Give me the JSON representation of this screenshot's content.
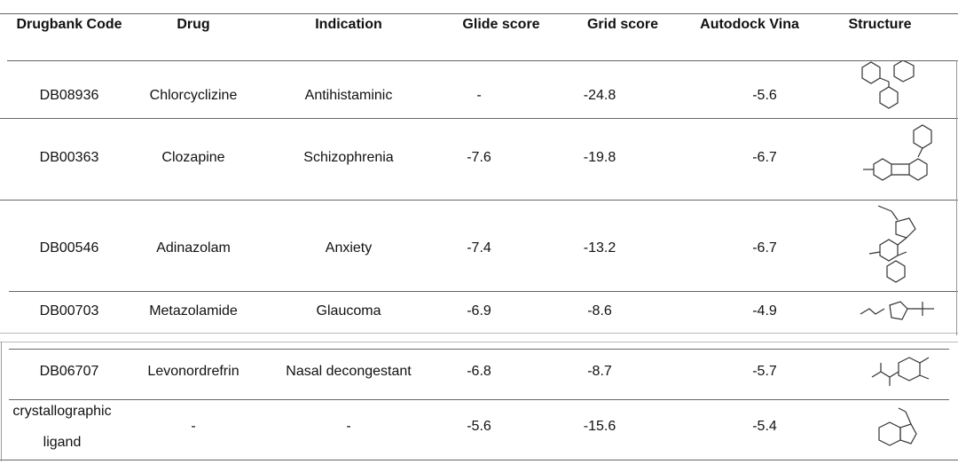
{
  "table": {
    "header": [
      "Drugbank Code",
      "Drug",
      "Indication",
      "Glide score",
      "Grid score",
      "Autodock Vina",
      "Structure"
    ],
    "rows": [
      [
        "DB08936",
        "Chlorcyclizine",
        "Antihistaminic",
        "-",
        "-24.8",
        "-5.6"
      ],
      [
        "DB00363",
        "Clozapine",
        "Schizophrenia",
        "-7.6",
        "-19.8",
        "-6.7"
      ],
      [
        "DB00546",
        "Adinazolam",
        "Anxiety",
        "-7.4",
        "-13.2",
        "-6.7"
      ],
      [
        "DB00703",
        "Metazolamide",
        "Glaucoma",
        "-6.9",
        "-8.6",
        "-4.9"
      ],
      [
        "DB06707",
        "Levonordrefrin",
        "Nasal decongestant",
        "-6.8",
        "-8.7",
        "-5.7"
      ],
      [
        "crystallographic ligand",
        "-",
        "-",
        "-5.6",
        "-15.6",
        "-5.4"
      ]
    ]
  }
}
